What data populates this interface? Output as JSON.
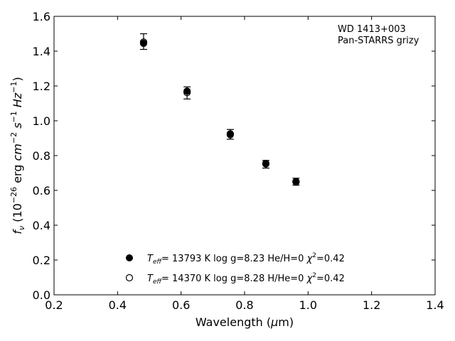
{
  "chart_data": {
    "type": "scatter",
    "xlabel_main": "Wavelength (",
    "xlabel_sym": "μ",
    "xlabel_end": "m)",
    "ylabel_parts": {
      "f": "f",
      "nu": "ν",
      "pre": " (10",
      "exp1": "−26",
      "mid": " erg ",
      "cm": "cm",
      "exp2": "−2",
      "s": " s",
      "exp3": "−1",
      "hz": " Hz",
      "exp4": "−1",
      "end": ")"
    },
    "annotation": [
      "WD 1413+003",
      "Pan-STARRS grizy"
    ],
    "xlim": [
      0.2,
      1.4
    ],
    "ylim": [
      0.0,
      1.6
    ],
    "xticks": [
      "0.2",
      "0.4",
      "0.6",
      "0.8",
      "1.0",
      "1.2",
      "1.4"
    ],
    "yticks": [
      "0.0",
      "0.2",
      "0.4",
      "0.6",
      "0.8",
      "1.0",
      "1.2",
      "1.4",
      "1.6"
    ],
    "legend_placement": "bottom-center",
    "observed": {
      "x": [
        0.482,
        0.619,
        0.755,
        0.867,
        0.962
      ],
      "y": [
        1.455,
        1.16,
        0.922,
        0.75,
        0.65
      ],
      "yerr": [
        0.045,
        0.035,
        0.028,
        0.022,
        0.02
      ]
    },
    "series": [
      {
        "marker": "filled",
        "teff_label": "T",
        "teff_sub": "eff",
        "text": "= 13793 K  log g=8.23  He/H=0  ",
        "chi": "χ",
        "chi_sup": "2",
        "chi_val": "=0.42",
        "x": [
          0.482,
          0.619,
          0.755,
          0.867,
          0.962
        ],
        "y": [
          1.445,
          1.17,
          0.925,
          0.755,
          0.648
        ]
      },
      {
        "marker": "open",
        "teff_label": "T",
        "teff_sub": "eff",
        "text": "= 14370 K  log g=8.28  H/He=0  ",
        "chi": "χ",
        "chi_sup": "2",
        "chi_val": "=0.42",
        "x": [
          0.482,
          0.619,
          0.755,
          0.867,
          0.962
        ],
        "y": [
          1.452,
          1.162,
          0.92,
          0.752,
          0.651
        ]
      }
    ]
  }
}
